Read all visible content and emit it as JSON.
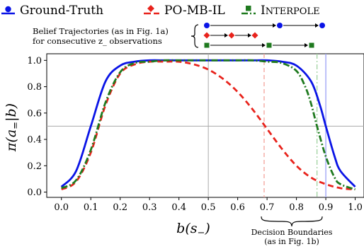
{
  "chart_data": {
    "type": "line",
    "xlabel": "b(s−)",
    "ylabel": "π(a=|b)",
    "xlim": [
      -0.05,
      1.03
    ],
    "ylim": [
      -0.04,
      1.05
    ],
    "x_ticks": [
      "0.0",
      "0.1",
      "0.2",
      "0.3",
      "0.4",
      "0.5",
      "0.6",
      "0.7",
      "0.8",
      "0.9",
      "1.0"
    ],
    "y_ticks": [
      "0.0",
      "0.2",
      "0.4",
      "0.6",
      "0.8",
      "1.0"
    ],
    "grid": false,
    "legend_position": "top",
    "colors": {
      "ground_truth": "#0a14e6",
      "po_mb_il": "#e8231c",
      "interpole": "#1f7a1f",
      "vline_po_mb_il": "#f4a29a",
      "vline_interpole": "#9fd29f",
      "vline_ground_truth": "#9aa0f5",
      "ref_lines": "#aaaaaa"
    },
    "reference_lines": {
      "horizontal_y": 0.5,
      "vertical_x": 0.5,
      "decision_boundaries_x": [
        0.69,
        0.87,
        0.9
      ]
    },
    "series": [
      {
        "name": "Ground-Truth",
        "style": "solid",
        "x": [
          0.0,
          0.05,
          0.1,
          0.15,
          0.2,
          0.25,
          0.3,
          0.35,
          0.4,
          0.45,
          0.5,
          0.55,
          0.6,
          0.65,
          0.7,
          0.75,
          0.8,
          0.85,
          0.88,
          0.9,
          0.93,
          0.95,
          1.0
        ],
        "y": [
          0.04,
          0.16,
          0.5,
          0.84,
          0.96,
          0.99,
          1.0,
          1.0,
          1.0,
          1.0,
          1.0,
          1.0,
          1.0,
          1.0,
          1.0,
          0.99,
          0.96,
          0.84,
          0.66,
          0.5,
          0.27,
          0.16,
          0.04
        ]
      },
      {
        "name": "PO-MB-IL",
        "style": "dashed",
        "x": [
          0.0,
          0.05,
          0.1,
          0.15,
          0.2,
          0.25,
          0.3,
          0.35,
          0.4,
          0.45,
          0.5,
          0.55,
          0.6,
          0.65,
          0.7,
          0.75,
          0.8,
          0.85,
          0.9,
          0.95,
          1.0
        ],
        "y": [
          0.02,
          0.08,
          0.3,
          0.66,
          0.9,
          0.97,
          0.99,
          0.99,
          0.99,
          0.97,
          0.93,
          0.86,
          0.76,
          0.63,
          0.48,
          0.33,
          0.2,
          0.11,
          0.06,
          0.03,
          0.02
        ]
      },
      {
        "name": "Interpole",
        "style": "dashdot",
        "x": [
          0.0,
          0.05,
          0.1,
          0.15,
          0.2,
          0.25,
          0.3,
          0.35,
          0.4,
          0.45,
          0.5,
          0.55,
          0.6,
          0.65,
          0.7,
          0.75,
          0.8,
          0.83,
          0.85,
          0.87,
          0.9,
          0.93,
          0.95,
          1.0
        ],
        "y": [
          0.03,
          0.09,
          0.32,
          0.68,
          0.91,
          0.98,
          0.99,
          1.0,
          1.0,
          1.0,
          1.0,
          1.0,
          1.0,
          1.0,
          0.99,
          0.98,
          0.92,
          0.8,
          0.67,
          0.5,
          0.27,
          0.11,
          0.06,
          0.02
        ]
      }
    ],
    "legend_items": [
      "Ground-Truth",
      "PO-MB-IL",
      "INTERPOLE"
    ],
    "annotations": {
      "belief_line1": "Belief Trajectories (as in Fig. 1a)",
      "belief_line2": "for consecutive z_ observations",
      "decision_line1": "Decision Boundaries",
      "decision_line2": "(as in Fig. 1b)"
    }
  }
}
